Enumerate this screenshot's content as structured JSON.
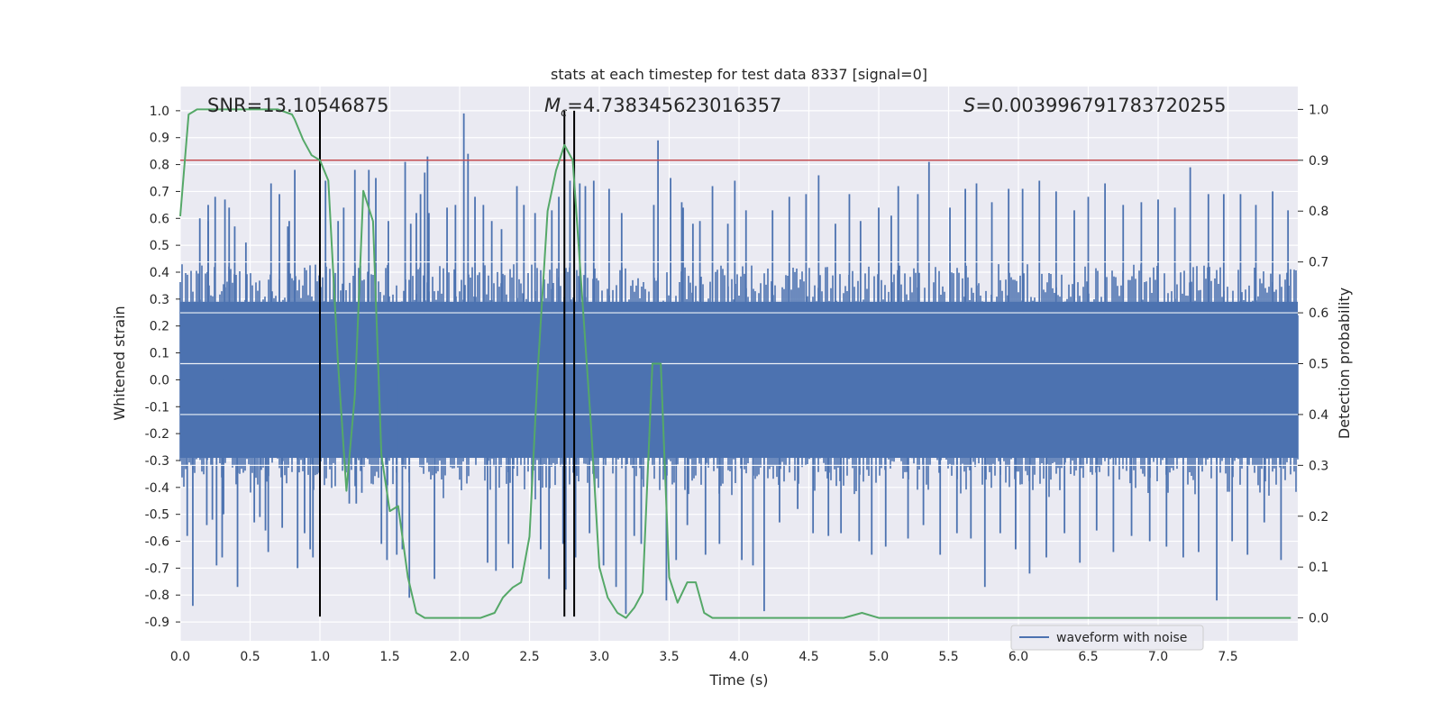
{
  "chart_data": {
    "type": "line",
    "title": "stats at each timestep for test data 8337 [signal=0]",
    "xlabel": "Time (s)",
    "ylabel": "Whitened strain",
    "y2label": "Detection probability",
    "xlim": [
      0.0,
      8.0
    ],
    "ylim": [
      -0.97,
      1.09
    ],
    "y2lim": [
      -0.045,
      1.045
    ],
    "xticks": [
      "0.0",
      "0.5",
      "1.0",
      "1.5",
      "2.0",
      "2.5",
      "3.0",
      "3.5",
      "4.0",
      "4.5",
      "5.0",
      "5.5",
      "6.0",
      "6.5",
      "7.0",
      "7.5"
    ],
    "yticks": [
      "1.0",
      "0.9",
      "0.8",
      "0.7",
      "0.6",
      "0.5",
      "0.4",
      "0.3",
      "0.2",
      "0.1",
      "0.0",
      "-0.1",
      "-0.2",
      "-0.3",
      "-0.4",
      "-0.5",
      "-0.6",
      "-0.7",
      "-0.8",
      "-0.9"
    ],
    "y2ticks": [
      "1.0",
      "0.9",
      "0.8",
      "0.7",
      "0.6",
      "0.5",
      "0.4",
      "0.3",
      "0.2",
      "0.1",
      "0.0"
    ],
    "annotations": {
      "snr": "SNR=13.10546875",
      "mc_symbol": "M",
      "mc_sub": "c",
      "mc_value": "=4.738345623016357",
      "s_symbol": "S",
      "s_value": "=0.003996791783720255"
    },
    "legend": {
      "label": "waveform with noise",
      "position": "lower-right"
    },
    "threshold_probability": 0.9,
    "vlines": [
      {
        "x": 1.0,
        "y_from": -0.88,
        "y_to": 1.0
      },
      {
        "x": 2.75,
        "y_from": -0.88,
        "y_to": 1.0
      },
      {
        "x": 2.82,
        "y_from": -0.88,
        "y_to": 1.0
      }
    ],
    "waveform": {
      "name": "waveform with noise",
      "color": "#4c72b0",
      "sample_rate": 2048,
      "band_core": 0.29,
      "band_upper": 0.43,
      "band_lower": -0.33,
      "spikes": [
        [
          0.05,
          -0.58
        ],
        [
          0.09,
          -0.84
        ],
        [
          0.14,
          0.6
        ],
        [
          0.19,
          -0.54
        ],
        [
          0.2,
          0.65
        ],
        [
          0.2,
          0.59
        ],
        [
          0.23,
          -0.52
        ],
        [
          0.25,
          0.68
        ],
        [
          0.26,
          -0.69
        ],
        [
          0.3,
          -0.66
        ],
        [
          0.31,
          -0.5
        ],
        [
          0.32,
          0.67
        ],
        [
          0.35,
          0.64
        ],
        [
          0.39,
          0.57
        ],
        [
          0.41,
          -0.77
        ],
        [
          0.47,
          0.51
        ],
        [
          0.53,
          -0.53
        ],
        [
          0.57,
          -0.51
        ],
        [
          0.61,
          -0.56
        ],
        [
          0.63,
          -0.64
        ],
        [
          0.65,
          0.73
        ],
        [
          0.71,
          0.69
        ],
        [
          0.73,
          -0.55
        ],
        [
          0.77,
          0.57
        ],
        [
          0.78,
          0.59
        ],
        [
          0.82,
          0.78
        ],
        [
          0.84,
          -0.7
        ],
        [
          0.89,
          -0.57
        ],
        [
          0.93,
          -0.63
        ],
        [
          0.95,
          -0.66
        ],
        [
          1.0,
          -0.62
        ],
        [
          1.04,
          0.74
        ],
        [
          1.13,
          0.59
        ],
        [
          1.17,
          0.64
        ],
        [
          1.21,
          -0.46
        ],
        [
          1.25,
          0.78
        ],
        [
          1.26,
          -0.46
        ],
        [
          1.3,
          -0.42
        ],
        [
          1.35,
          0.78
        ],
        [
          1.4,
          0.75
        ],
        [
          1.44,
          -0.61
        ],
        [
          1.48,
          -0.67
        ],
        [
          1.49,
          0.59
        ],
        [
          1.55,
          -0.65
        ],
        [
          1.55,
          -0.48
        ],
        [
          1.59,
          -0.63
        ],
        [
          1.61,
          0.81
        ],
        [
          1.64,
          -0.81
        ],
        [
          1.65,
          0.58
        ],
        [
          1.69,
          0.62
        ],
        [
          1.72,
          0.69
        ],
        [
          1.75,
          0.77
        ],
        [
          1.77,
          0.83
        ],
        [
          1.78,
          0.62
        ],
        [
          1.82,
          -0.74
        ],
        [
          1.91,
          0.64
        ],
        [
          1.97,
          0.65
        ],
        [
          2.03,
          0.99
        ],
        [
          2.06,
          0.84
        ],
        [
          2.11,
          0.68
        ],
        [
          2.17,
          0.65
        ],
        [
          2.2,
          -0.68
        ],
        [
          2.23,
          0.59
        ],
        [
          2.26,
          -0.71
        ],
        [
          2.3,
          0.56
        ],
        [
          2.35,
          -0.61
        ],
        [
          2.38,
          -0.7
        ],
        [
          2.41,
          0.72
        ],
        [
          2.46,
          0.65
        ],
        [
          2.54,
          0.62
        ],
        [
          2.58,
          -0.63
        ],
        [
          2.64,
          -0.74
        ],
        [
          2.66,
          0.63
        ],
        [
          2.71,
          0.68
        ],
        [
          2.74,
          -0.61
        ],
        [
          2.76,
          -0.78
        ],
        [
          2.79,
          0.74
        ],
        [
          2.83,
          -0.66
        ],
        [
          2.86,
          0.73
        ],
        [
          2.9,
          0.72
        ],
        [
          2.93,
          -0.57
        ],
        [
          2.96,
          0.74
        ],
        [
          3.03,
          -0.69
        ],
        [
          3.07,
          0.71
        ],
        [
          3.12,
          -0.77
        ],
        [
          3.16,
          0.62
        ],
        [
          3.19,
          -0.87
        ],
        [
          3.25,
          -0.58
        ],
        [
          3.3,
          -0.61
        ],
        [
          3.39,
          0.65
        ],
        [
          3.42,
          0.89
        ],
        [
          3.48,
          -0.82
        ],
        [
          3.51,
          0.75
        ],
        [
          3.55,
          -0.67
        ],
        [
          3.59,
          0.66
        ],
        [
          3.6,
          0.64
        ],
        [
          3.63,
          -0.54
        ],
        [
          3.67,
          0.58
        ],
        [
          3.72,
          0.59
        ],
        [
          3.76,
          -0.65
        ],
        [
          3.81,
          0.72
        ],
        [
          3.86,
          -0.61
        ],
        [
          3.92,
          0.58
        ],
        [
          3.97,
          0.74
        ],
        [
          4.02,
          -0.67
        ],
        [
          4.05,
          0.63
        ],
        [
          4.1,
          -0.69
        ],
        [
          4.18,
          -0.86
        ],
        [
          4.24,
          0.63
        ],
        [
          4.29,
          -0.53
        ],
        [
          4.36,
          0.68
        ],
        [
          4.42,
          -0.48
        ],
        [
          4.48,
          0.69
        ],
        [
          4.53,
          -0.57
        ],
        [
          4.57,
          0.76
        ],
        [
          4.64,
          -0.58
        ],
        [
          4.69,
          0.58
        ],
        [
          4.73,
          -0.57
        ],
        [
          4.79,
          0.69
        ],
        [
          4.86,
          -0.6
        ],
        [
          4.87,
          0.59
        ],
        [
          4.95,
          -0.65
        ],
        [
          5.0,
          0.64
        ],
        [
          5.05,
          -0.62
        ],
        [
          5.09,
          0.61
        ],
        [
          5.14,
          0.72
        ],
        [
          5.21,
          -0.59
        ],
        [
          5.28,
          0.69
        ],
        [
          5.32,
          -0.54
        ],
        [
          5.36,
          0.81
        ],
        [
          5.44,
          -0.65
        ],
        [
          5.51,
          0.64
        ],
        [
          5.56,
          -0.57
        ],
        [
          5.62,
          0.71
        ],
        [
          5.66,
          -0.59
        ],
        [
          5.7,
          0.73
        ],
        [
          5.76,
          -0.77
        ],
        [
          5.81,
          0.66
        ],
        [
          5.87,
          -0.57
        ],
        [
          5.93,
          0.71
        ],
        [
          5.98,
          -0.63
        ],
        [
          6.03,
          0.71
        ],
        [
          6.08,
          -0.72
        ],
        [
          6.15,
          0.74
        ],
        [
          6.2,
          -0.66
        ],
        [
          6.27,
          0.7
        ],
        [
          6.33,
          -0.57
        ],
        [
          6.4,
          0.63
        ],
        [
          6.44,
          -0.68
        ],
        [
          6.5,
          0.68
        ],
        [
          6.56,
          -0.56
        ],
        [
          6.62,
          0.73
        ],
        [
          6.68,
          -0.64
        ],
        [
          6.75,
          0.65
        ],
        [
          6.81,
          -0.58
        ],
        [
          6.88,
          0.66
        ],
        [
          6.94,
          -0.6
        ],
        [
          7.0,
          0.67
        ],
        [
          7.06,
          -0.62
        ],
        [
          7.12,
          0.64
        ],
        [
          7.18,
          -0.66
        ],
        [
          7.23,
          0.79
        ],
        [
          7.29,
          -0.64
        ],
        [
          7.36,
          0.69
        ],
        [
          7.42,
          -0.82
        ],
        [
          7.47,
          0.69
        ],
        [
          7.53,
          -0.6
        ],
        [
          7.59,
          0.69
        ],
        [
          7.64,
          -0.65
        ],
        [
          7.7,
          0.65
        ],
        [
          7.76,
          -0.53
        ],
        [
          7.82,
          0.7
        ],
        [
          7.88,
          -0.67
        ],
        [
          7.93,
          0.63
        ]
      ]
    },
    "probability": {
      "color": "#55a868",
      "x": [
        0.0,
        0.06,
        0.12,
        0.2,
        0.3,
        0.4,
        0.5,
        0.6,
        0.7,
        0.8,
        0.82,
        0.88,
        0.94,
        1.0,
        1.06,
        1.13,
        1.19,
        1.25,
        1.31,
        1.38,
        1.44,
        1.5,
        1.56,
        1.63,
        1.69,
        1.75,
        1.85,
        2.0,
        2.15,
        2.25,
        2.31,
        2.38,
        2.44,
        2.5,
        2.56,
        2.63,
        2.69,
        2.75,
        2.81,
        2.88,
        2.94,
        3.0,
        3.06,
        3.13,
        3.19,
        3.25,
        3.31,
        3.38,
        3.44,
        3.5,
        3.56,
        3.63,
        3.69,
        3.75,
        3.81,
        3.88,
        4.0,
        4.5,
        4.75,
        4.88,
        5.0,
        5.13,
        5.25,
        5.5,
        6.0,
        6.06,
        6.13,
        6.25,
        6.5,
        7.0,
        7.13,
        7.25,
        7.5,
        7.75,
        7.95
      ],
      "y": [
        0.79,
        0.99,
        1.0,
        1.0,
        1.0,
        1.0,
        1.0,
        1.0,
        1.0,
        0.99,
        0.98,
        0.94,
        0.91,
        0.9,
        0.86,
        0.5,
        0.25,
        0.44,
        0.84,
        0.78,
        0.32,
        0.21,
        0.22,
        0.08,
        0.01,
        0.0,
        0.0,
        0.0,
        0.0,
        0.01,
        0.04,
        0.06,
        0.07,
        0.16,
        0.49,
        0.8,
        0.88,
        0.93,
        0.9,
        0.62,
        0.38,
        0.1,
        0.04,
        0.01,
        0.0,
        0.02,
        0.05,
        0.5,
        0.5,
        0.08,
        0.03,
        0.07,
        0.07,
        0.01,
        0.0,
        0.0,
        0.0,
        0.0,
        0.0,
        0.01,
        0.0,
        0.0,
        0.0,
        0.0,
        0.0,
        0.0,
        0.0,
        0.0,
        0.0,
        0.0,
        0.0,
        0.0,
        0.0,
        0.0,
        0.0
      ]
    },
    "threshold_color": "#c44e52",
    "vline_color": "#000000"
  }
}
